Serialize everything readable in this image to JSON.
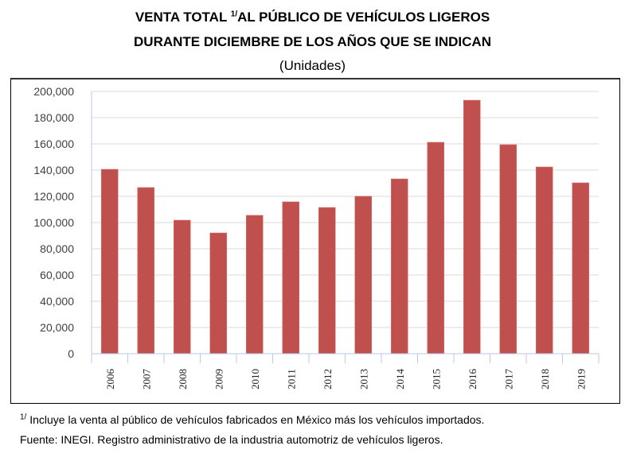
{
  "header": {
    "title_line1_pre": "VENTA TOTAL ",
    "title_sup": "1/",
    "title_line1_post": "AL PÚBLICO DE VEHÍCULOS LIGEROS",
    "title_line2": "DURANTE DICIEMBRE DE LOS AÑOS QUE SE INDICAN",
    "units": "(Unidades)"
  },
  "footer": {
    "note_sup": "1/",
    "note_text": " Incluye la venta al público de vehículos fabricados en México más los vehículos importados.",
    "source": "Fuente: INEGI. Registro administrativo de la industria automotriz de vehículos ligeros."
  },
  "colors": {
    "bar": "#c0504d",
    "grid": "#ececec",
    "axis": "#b9c9e6"
  },
  "chart_data": {
    "type": "bar",
    "title": "VENTA TOTAL 1/AL PÚBLICO DE VEHÍCULOS LIGEROS DURANTE DICIEMBRE DE LOS AÑOS QUE SE INDICAN",
    "subtitle": "(Unidades)",
    "xlabel": "",
    "ylabel": "",
    "categories": [
      "2006",
      "2007",
      "2008",
      "2009",
      "2010",
      "2011",
      "2012",
      "2013",
      "2014",
      "2015",
      "2016",
      "2017",
      "2018",
      "2019"
    ],
    "values": [
      140600,
      126700,
      101800,
      92100,
      105500,
      115800,
      111500,
      120000,
      133300,
      161200,
      193300,
      159400,
      142400,
      130300
    ],
    "ylim": [
      0,
      200000
    ],
    "yticks": [
      0,
      20000,
      40000,
      60000,
      80000,
      100000,
      120000,
      140000,
      160000,
      180000,
      200000
    ],
    "ytick_labels": [
      "0",
      "20,000",
      "40,000",
      "60,000",
      "80,000",
      "100,000",
      "120,000",
      "140,000",
      "160,000",
      "180,000",
      "200,000"
    ],
    "grid": true,
    "legend": "none"
  }
}
